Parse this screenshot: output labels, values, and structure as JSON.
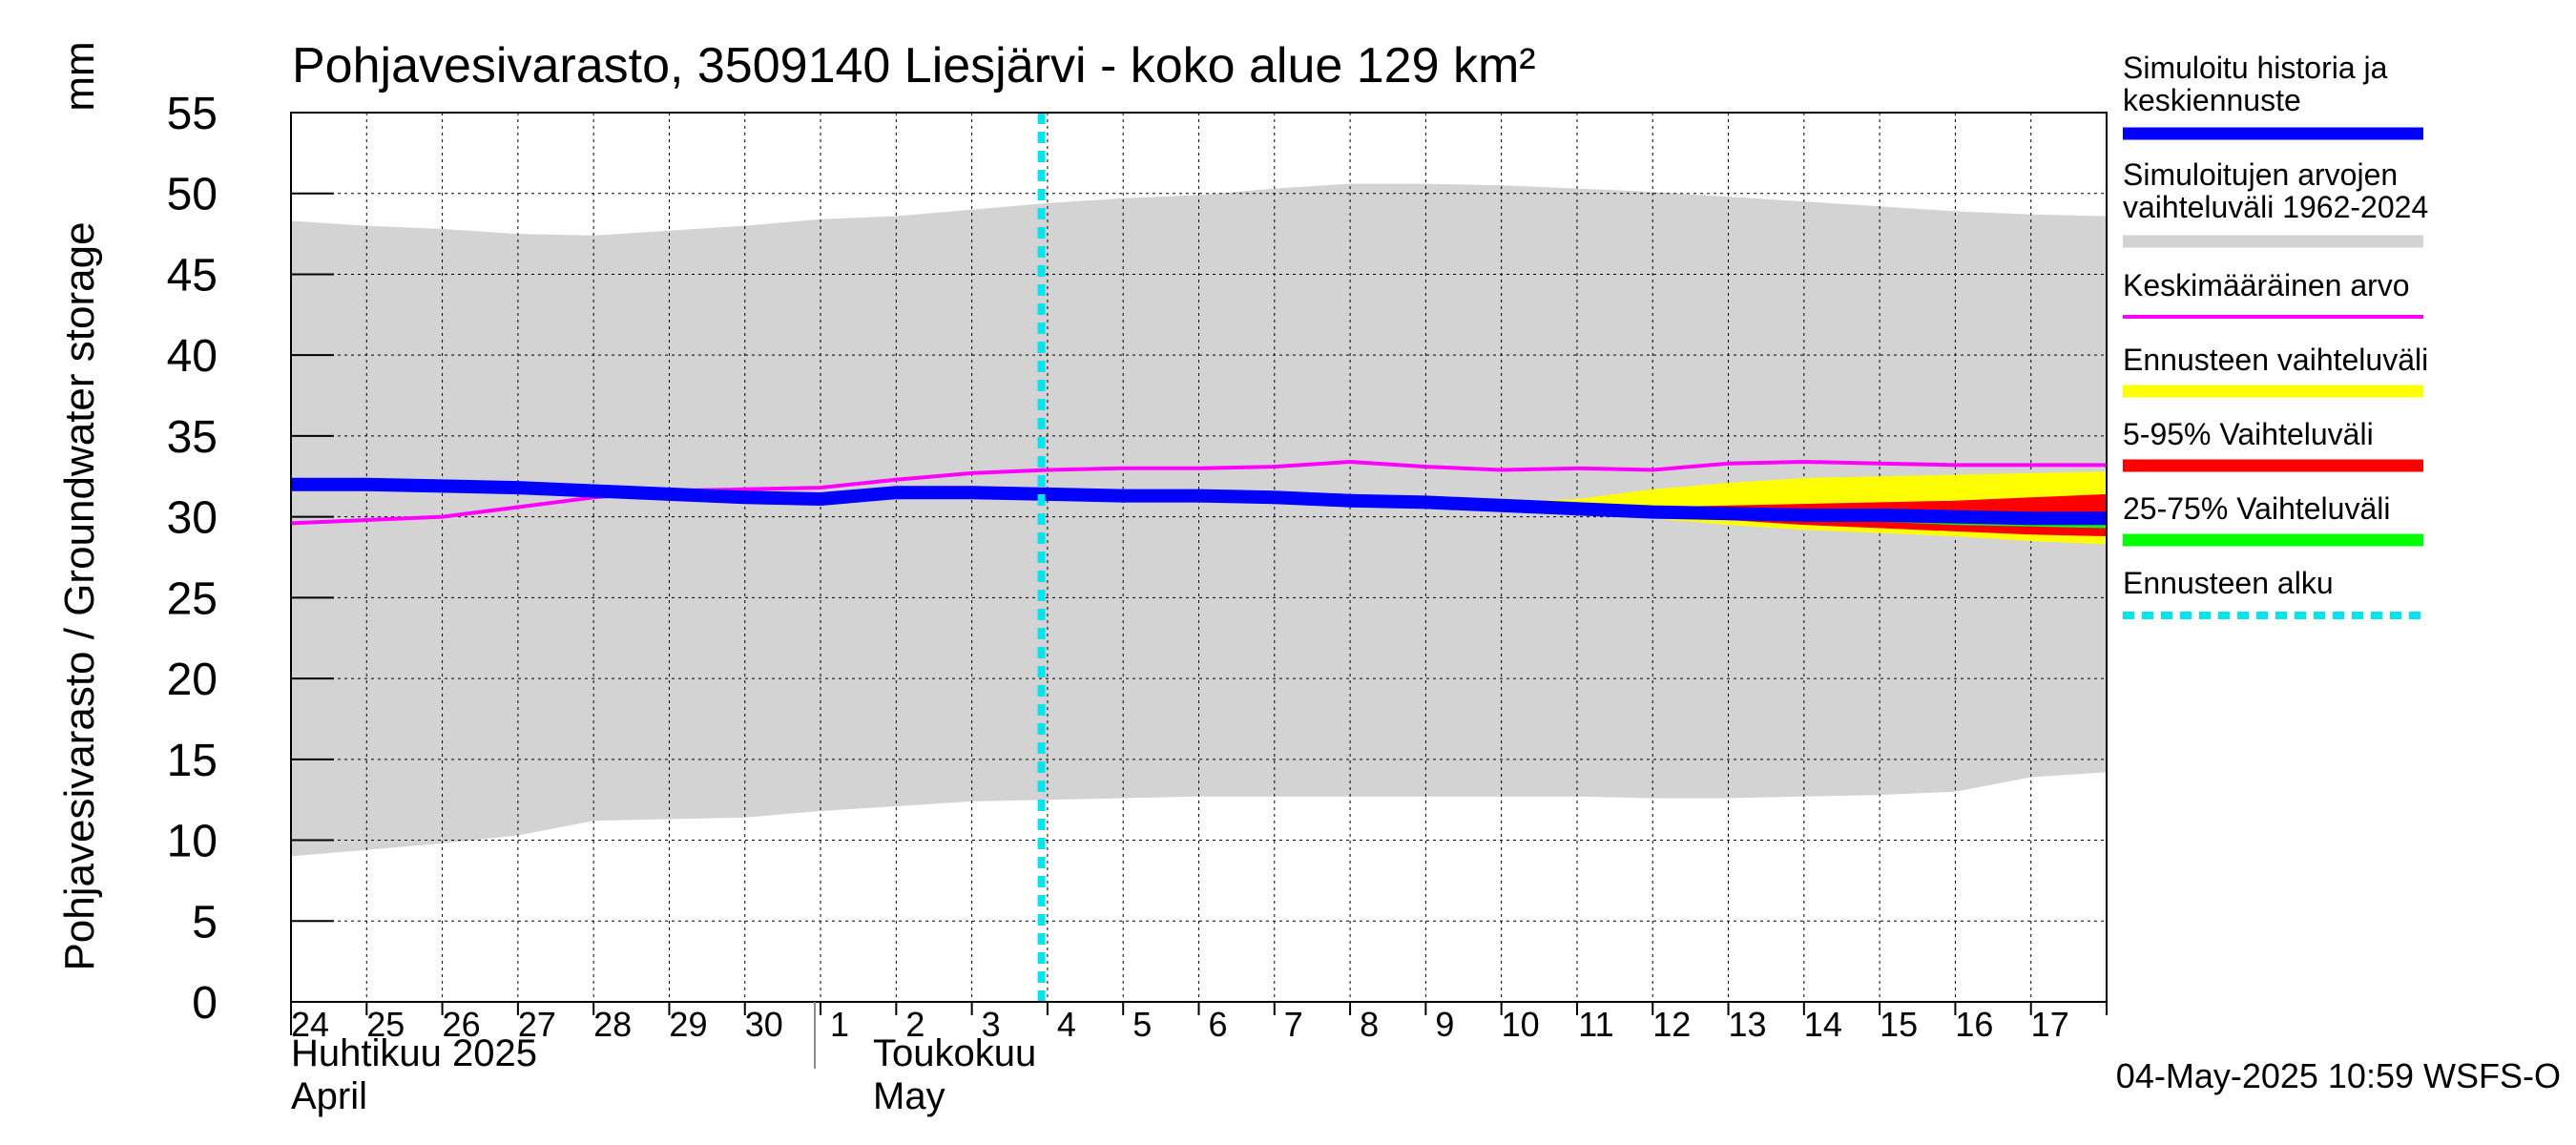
{
  "chart_data": {
    "type": "area",
    "title": "Pohjavesivarasto, 3509140 Liesjärvi - koko alue 129 km²",
    "ylabel": "Pohjavesivarasto / Groundwater storage",
    "yunit": "mm",
    "ylim": [
      0,
      55
    ],
    "yticks": [
      0,
      5,
      10,
      15,
      20,
      25,
      30,
      35,
      40,
      45,
      50,
      55
    ],
    "grid": true,
    "legend_position": "right",
    "x_day_labels": [
      "24",
      "25",
      "26",
      "27",
      "28",
      "29",
      "30",
      "1",
      "2",
      "3",
      "4",
      "5",
      "6",
      "7",
      "8",
      "9",
      "10",
      "11",
      "12",
      "13",
      "14",
      "15",
      "16",
      "17"
    ],
    "month_labels": [
      {
        "fi": "Huhtikuu  2025",
        "en": "April"
      },
      {
        "fi": "Toukokuu",
        "en": "May"
      }
    ],
    "footer": "04-May-2025 10:59 WSFS-O",
    "forecast_start": "2025-05-04",
    "dates": [
      "2025-04-24",
      "2025-04-25",
      "2025-04-26",
      "2025-04-27",
      "2025-04-28",
      "2025-04-29",
      "2025-04-30",
      "2025-05-01",
      "2025-05-02",
      "2025-05-03",
      "2025-05-04",
      "2025-05-05",
      "2025-05-06",
      "2025-05-07",
      "2025-05-08",
      "2025-05-09",
      "2025-05-10",
      "2025-05-11",
      "2025-05-12",
      "2025-05-13",
      "2025-05-14",
      "2025-05-15",
      "2025-05-16",
      "2025-05-17",
      "2025-05-18"
    ],
    "series": [
      {
        "name": "Simuloitujen arvojen vaihteluväli 1962-2024",
        "role": "range",
        "color": "#d3d3d3",
        "upper": [
          48.3,
          48.0,
          47.8,
          47.5,
          47.4,
          47.7,
          48.0,
          48.4,
          48.6,
          49.0,
          49.4,
          49.7,
          49.9,
          50.3,
          50.6,
          50.6,
          50.5,
          50.3,
          50.1,
          49.8,
          49.5,
          49.2,
          48.9,
          48.7,
          48.6
        ],
        "lower": [
          9.0,
          9.4,
          9.8,
          10.3,
          11.2,
          11.3,
          11.4,
          11.8,
          12.1,
          12.4,
          12.5,
          12.6,
          12.7,
          12.7,
          12.7,
          12.7,
          12.7,
          12.7,
          12.6,
          12.6,
          12.7,
          12.8,
          13.0,
          13.9,
          14.2
        ]
      },
      {
        "name": "Ennusteen vaihteluväli",
        "role": "range",
        "color": "#ffff00",
        "dates": [
          "2025-05-10",
          "2025-05-11",
          "2025-05-12",
          "2025-05-13",
          "2025-05-14",
          "2025-05-15",
          "2025-05-16",
          "2025-05-17",
          "2025-05-18"
        ],
        "upper": [
          30.9,
          31.1,
          31.7,
          32.1,
          32.4,
          32.5,
          32.6,
          32.7,
          32.8
        ],
        "lower": [
          30.7,
          30.3,
          29.9,
          29.5,
          29.2,
          29.0,
          28.8,
          28.5,
          28.3
        ]
      },
      {
        "name": "5-95% Vaihteluväli",
        "role": "range",
        "color": "#ff0000",
        "dates": [
          "2025-05-10",
          "2025-05-11",
          "2025-05-12",
          "2025-05-13",
          "2025-05-14",
          "2025-05-15",
          "2025-05-16",
          "2025-05-17",
          "2025-05-18"
        ],
        "upper": [
          30.8,
          30.7,
          30.6,
          30.7,
          30.8,
          30.9,
          31.0,
          31.2,
          31.4
        ],
        "lower": [
          30.7,
          30.4,
          30.1,
          29.8,
          29.5,
          29.3,
          29.1,
          28.9,
          28.8
        ]
      },
      {
        "name": "25-75% Vaihteluväli",
        "role": "range",
        "color": "#00ff00",
        "dates": [
          "2025-05-10",
          "2025-05-11",
          "2025-05-12",
          "2025-05-13",
          "2025-05-14",
          "2025-05-15",
          "2025-05-16",
          "2025-05-17",
          "2025-05-18"
        ],
        "upper": [
          30.75,
          30.6,
          30.4,
          30.3,
          30.3,
          30.3,
          30.3,
          30.3,
          30.3
        ],
        "lower": [
          30.7,
          30.5,
          30.3,
          30.1,
          29.9,
          29.7,
          29.5,
          29.4,
          29.3
        ]
      },
      {
        "name": "Keskimääräinen arvo",
        "role": "line",
        "color": "#ff00ff",
        "values": [
          29.6,
          29.8,
          30.0,
          30.6,
          31.2,
          31.6,
          31.7,
          31.8,
          32.3,
          32.7,
          32.9,
          33.0,
          33.0,
          33.1,
          33.4,
          33.1,
          32.9,
          33.0,
          32.9,
          33.3,
          33.4,
          33.3,
          33.2,
          33.2,
          33.2
        ]
      },
      {
        "name": "Simuloitu historia ja keskiennuste",
        "role": "line",
        "color": "#0000ff",
        "values": [
          32.0,
          32.0,
          31.9,
          31.8,
          31.6,
          31.4,
          31.2,
          31.1,
          31.5,
          31.5,
          31.4,
          31.3,
          31.3,
          31.2,
          31.0,
          30.9,
          30.7,
          30.5,
          30.3,
          30.2,
          30.1,
          30.1,
          30.0,
          29.9,
          29.9
        ]
      },
      {
        "name": "Ennusteen alku",
        "role": "vline",
        "color": "#00e5ee",
        "x": "2025-05-04"
      }
    ],
    "legend": [
      {
        "label": "Simuloitu historia ja keskiennuste",
        "color": "#0000ff",
        "style": "solid"
      },
      {
        "label": "Simuloitujen arvojen vaihteluväli 1962-2024",
        "color": "#d3d3d3",
        "style": "solid"
      },
      {
        "label": "Keskimääräinen arvo",
        "color": "#ff00ff",
        "style": "thin"
      },
      {
        "label": "Ennusteen vaihteluväli",
        "color": "#ffff00",
        "style": "solid"
      },
      {
        "label": "5-95% Vaihteluväli",
        "color": "#ff0000",
        "style": "solid"
      },
      {
        "label": "25-75% Vaihteluväli",
        "color": "#00ff00",
        "style": "solid"
      },
      {
        "label": "Ennusteen alku",
        "color": "#00e5ee",
        "style": "dashed"
      }
    ]
  }
}
